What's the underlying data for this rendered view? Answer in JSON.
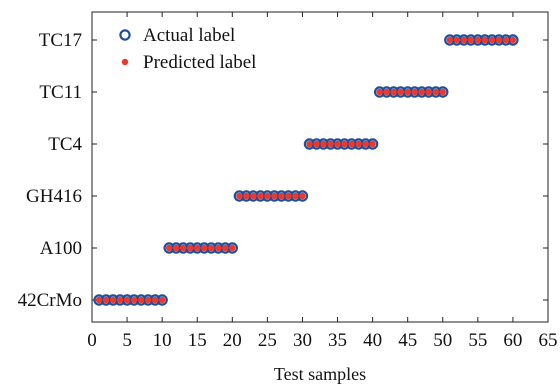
{
  "chart_data": {
    "type": "scatter",
    "xlabel": "Test samples",
    "ylabel": "",
    "xlim": [
      0,
      65
    ],
    "x_ticks": [
      0,
      5,
      10,
      15,
      20,
      25,
      30,
      35,
      40,
      45,
      50,
      55,
      60,
      65
    ],
    "categories": [
      "42CrMo",
      "A100",
      "GH416",
      "TC4",
      "TC11",
      "TC17"
    ],
    "grid": false,
    "legend_position": "top-left",
    "series": [
      {
        "name": "Actual label",
        "marker": "open-circle",
        "color": "#1f4e9c",
        "x": [
          1,
          2,
          3,
          4,
          5,
          6,
          7,
          8,
          9,
          10,
          11,
          12,
          13,
          14,
          15,
          16,
          17,
          18,
          19,
          20,
          21,
          22,
          23,
          24,
          25,
          26,
          27,
          28,
          29,
          30,
          31,
          32,
          33,
          34,
          35,
          36,
          37,
          38,
          39,
          40,
          41,
          42,
          43,
          44,
          45,
          46,
          47,
          48,
          49,
          50,
          51,
          52,
          53,
          54,
          55,
          56,
          57,
          58,
          59,
          60
        ],
        "y": [
          "42CrMo",
          "42CrMo",
          "42CrMo",
          "42CrMo",
          "42CrMo",
          "42CrMo",
          "42CrMo",
          "42CrMo",
          "42CrMo",
          "42CrMo",
          "A100",
          "A100",
          "A100",
          "A100",
          "A100",
          "A100",
          "A100",
          "A100",
          "A100",
          "A100",
          "GH416",
          "GH416",
          "GH416",
          "GH416",
          "GH416",
          "GH416",
          "GH416",
          "GH416",
          "GH416",
          "GH416",
          "TC4",
          "TC4",
          "TC4",
          "TC4",
          "TC4",
          "TC4",
          "TC4",
          "TC4",
          "TC4",
          "TC4",
          "TC11",
          "TC11",
          "TC11",
          "TC11",
          "TC11",
          "TC11",
          "TC11",
          "TC11",
          "TC11",
          "TC11",
          "TC17",
          "TC17",
          "TC17",
          "TC17",
          "TC17",
          "TC17",
          "TC17",
          "TC17",
          "TC17",
          "TC17"
        ]
      },
      {
        "name": "Predicted label",
        "marker": "filled-dot",
        "color": "#e8392e",
        "x": [
          1,
          2,
          3,
          4,
          5,
          6,
          7,
          8,
          9,
          10,
          11,
          12,
          13,
          14,
          15,
          16,
          17,
          18,
          19,
          20,
          21,
          22,
          23,
          24,
          25,
          26,
          27,
          28,
          29,
          30,
          31,
          32,
          33,
          34,
          35,
          36,
          37,
          38,
          39,
          40,
          41,
          42,
          43,
          44,
          45,
          46,
          47,
          48,
          49,
          50,
          51,
          52,
          53,
          54,
          55,
          56,
          57,
          58,
          59,
          60
        ],
        "y": [
          "42CrMo",
          "42CrMo",
          "42CrMo",
          "42CrMo",
          "42CrMo",
          "42CrMo",
          "42CrMo",
          "42CrMo",
          "42CrMo",
          "42CrMo",
          "A100",
          "A100",
          "A100",
          "A100",
          "A100",
          "A100",
          "A100",
          "A100",
          "A100",
          "A100",
          "GH416",
          "GH416",
          "GH416",
          "GH416",
          "GH416",
          "GH416",
          "GH416",
          "GH416",
          "GH416",
          "GH416",
          "TC4",
          "TC4",
          "TC4",
          "TC4",
          "TC4",
          "TC4",
          "TC4",
          "TC4",
          "TC4",
          "TC4",
          "TC11",
          "TC11",
          "TC11",
          "TC11",
          "TC11",
          "TC11",
          "TC11",
          "TC11",
          "TC11",
          "TC11",
          "TC17",
          "TC17",
          "TC17",
          "TC17",
          "TC17",
          "TC17",
          "TC17",
          "TC17",
          "TC17",
          "TC17"
        ]
      }
    ]
  }
}
